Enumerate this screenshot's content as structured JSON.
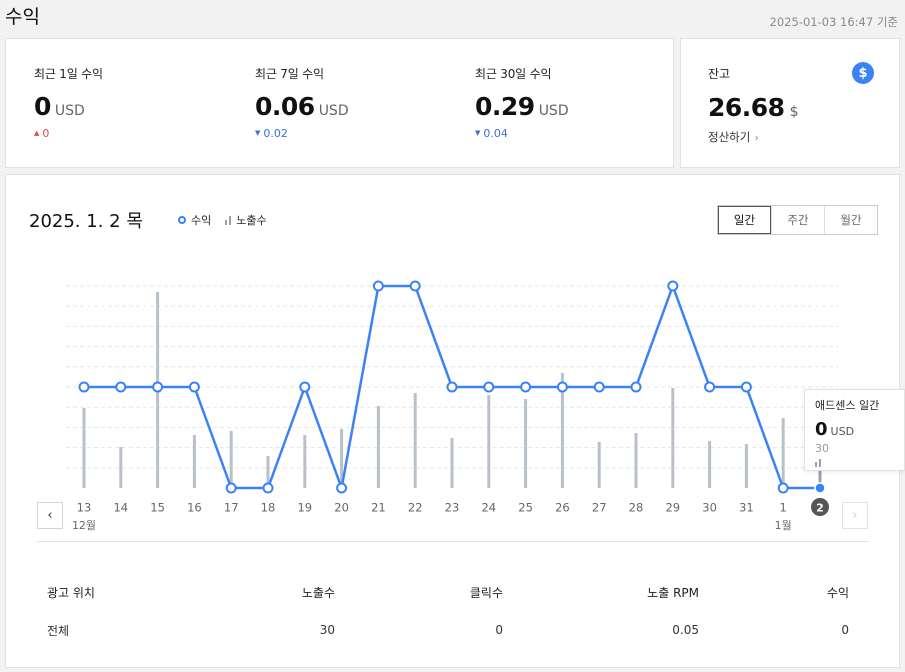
{
  "header": {
    "title": "수익",
    "timestamp": "2025-01-03 16:47 기준"
  },
  "stats": [
    {
      "label": "최근 1일 수익",
      "value": "0",
      "unit": "USD",
      "delta": "0",
      "direction": "up"
    },
    {
      "label": "최근 7일 수익",
      "value": "0.06",
      "unit": "USD",
      "delta": "0.02",
      "direction": "down"
    },
    {
      "label": "최근 30일 수익",
      "value": "0.29",
      "unit": "USD",
      "delta": "0.04",
      "direction": "down"
    }
  ],
  "balance": {
    "label": "잔고",
    "value": "26.68",
    "unit": "$",
    "icon": "dollar-icon",
    "link": "정산하기"
  },
  "chart_panel": {
    "date": "2025. 1. 2 목",
    "legend": [
      {
        "label": "수익"
      },
      {
        "label": "노출수"
      }
    ],
    "periods": [
      {
        "label": "일간",
        "active": true
      },
      {
        "label": "주간",
        "active": false
      },
      {
        "label": "월간",
        "active": false
      }
    ],
    "prev_icon": "chevron-left-icon",
    "next_icon": "chevron-right-icon"
  },
  "chart_data": {
    "type": "line",
    "x": [
      "13",
      "14",
      "15",
      "16",
      "17",
      "18",
      "19",
      "20",
      "21",
      "22",
      "23",
      "24",
      "25",
      "26",
      "27",
      "28",
      "29",
      "30",
      "31",
      "1",
      "2"
    ],
    "x_sublabels": {
      "0": "12월",
      "19": "1월"
    },
    "highlight_index": 20,
    "series": [
      {
        "name": "수익",
        "type": "line",
        "color": "#3b82f6",
        "values": [
          0.01,
          0.01,
          0.01,
          0.01,
          0,
          0,
          0.01,
          0,
          0.02,
          0.02,
          0.01,
          0.01,
          0.01,
          0.01,
          0.01,
          0.01,
          0.02,
          0.01,
          0.01,
          0,
          0
        ]
      },
      {
        "name": "노출수",
        "type": "bar",
        "color": "#b8c0c9",
        "values": [
          80,
          41,
          196,
          53,
          57,
          32,
          53,
          59,
          82,
          95,
          50,
          93,
          89,
          115,
          46,
          55,
          100,
          47,
          44,
          70,
          30
        ]
      }
    ],
    "grid": true
  },
  "tooltip": {
    "title": "애드센스 일간",
    "value": "0",
    "unit": "USD",
    "impressions": "30"
  },
  "table": {
    "headers": [
      "광고 위치",
      "노출수",
      "클릭수",
      "노출 RPM",
      "수익"
    ],
    "rows": [
      [
        "전체",
        "30",
        "0",
        "0.05",
        "0"
      ]
    ]
  },
  "colors": {
    "accent": "#3b82f6",
    "up": "#e5484d",
    "down": "#3b6fd9"
  }
}
